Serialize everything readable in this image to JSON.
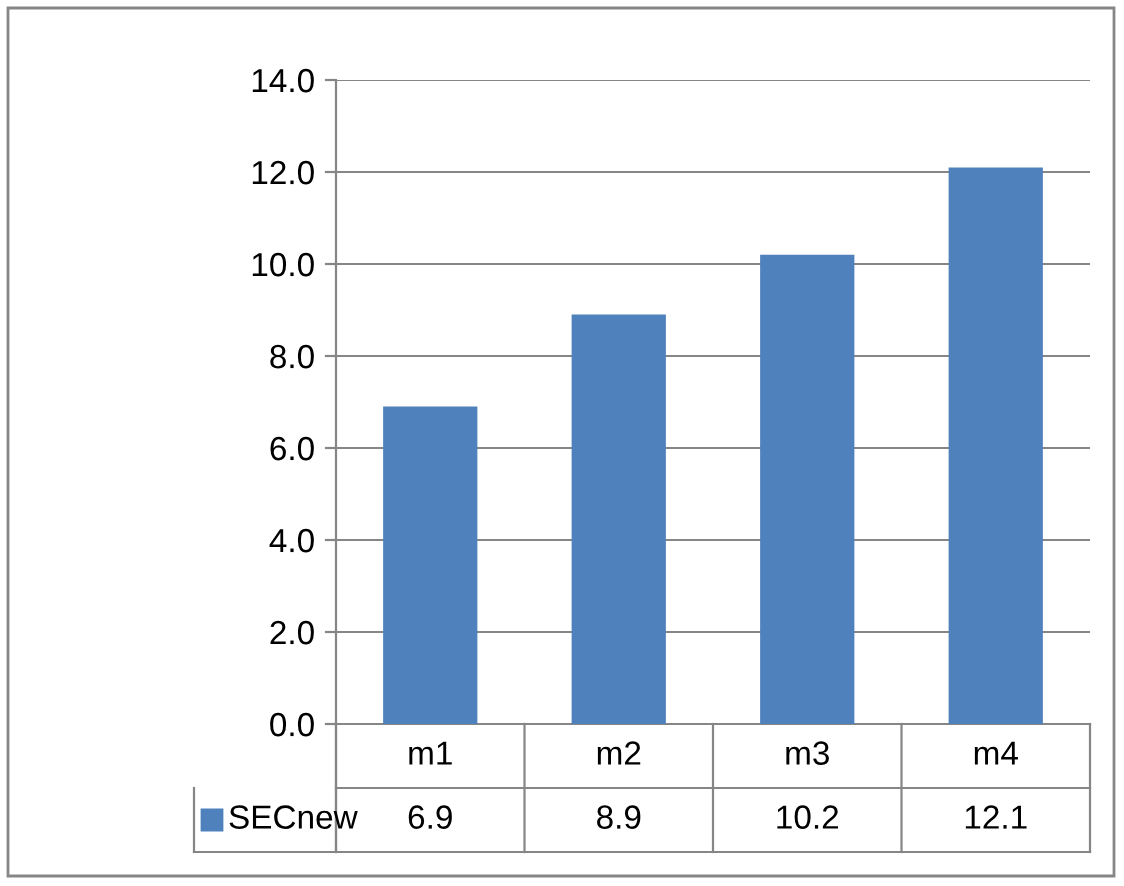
{
  "chart_data": {
    "type": "bar",
    "categories": [
      "m1",
      "m2",
      "m3",
      "m4"
    ],
    "series": [
      {
        "name": "SECnew",
        "color": "#4f81bd",
        "values": [
          6.9,
          8.9,
          10.2,
          12.1
        ]
      }
    ],
    "ylim": [
      0,
      14
    ],
    "yticks": [
      {
        "value": 0,
        "label": "0.0"
      },
      {
        "value": 2,
        "label": "2.0"
      },
      {
        "value": 4,
        "label": "4.0"
      },
      {
        "value": 6,
        "label": "6.0"
      },
      {
        "value": 8,
        "label": "8.0"
      },
      {
        "value": 10,
        "label": "10.0"
      },
      {
        "value": 12,
        "label": "12.0"
      },
      {
        "value": 14,
        "label": "14.0"
      }
    ],
    "grid": "y",
    "data_labels": true,
    "legend": "bottom"
  }
}
